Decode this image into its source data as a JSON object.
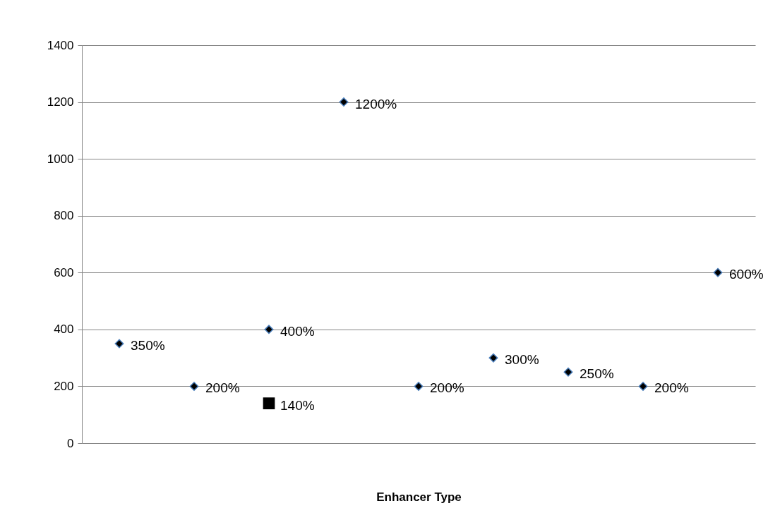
{
  "chart_data": {
    "type": "scatter",
    "xlabel": "Enhancer Type",
    "categories": [
      null,
      null,
      null,
      null,
      null,
      null,
      null,
      null,
      null
    ],
    "ylim": [
      0,
      1400
    ],
    "yticks": [
      0,
      200,
      400,
      600,
      800,
      1000,
      1200,
      1400
    ],
    "grid": "y",
    "tick_labels": "y",
    "series": [
      {
        "color": "#000000",
        "marker": "diamond",
        "values": [
          350,
          200,
          400,
          1200,
          200,
          300,
          250,
          200,
          600
        ],
        "value_labels": [
          "350%",
          "200%",
          "400%",
          "1200%",
          "200%",
          "300%",
          "250%",
          "200%",
          "600%"
        ]
      },
      {
        "color": "#000000",
        "marker": "square",
        "values": [
          null,
          null,
          140,
          null,
          null,
          null,
          null,
          null,
          null
        ],
        "value_labels": [
          null,
          null,
          "140%",
          null,
          null,
          null,
          null,
          null,
          null
        ]
      }
    ]
  }
}
